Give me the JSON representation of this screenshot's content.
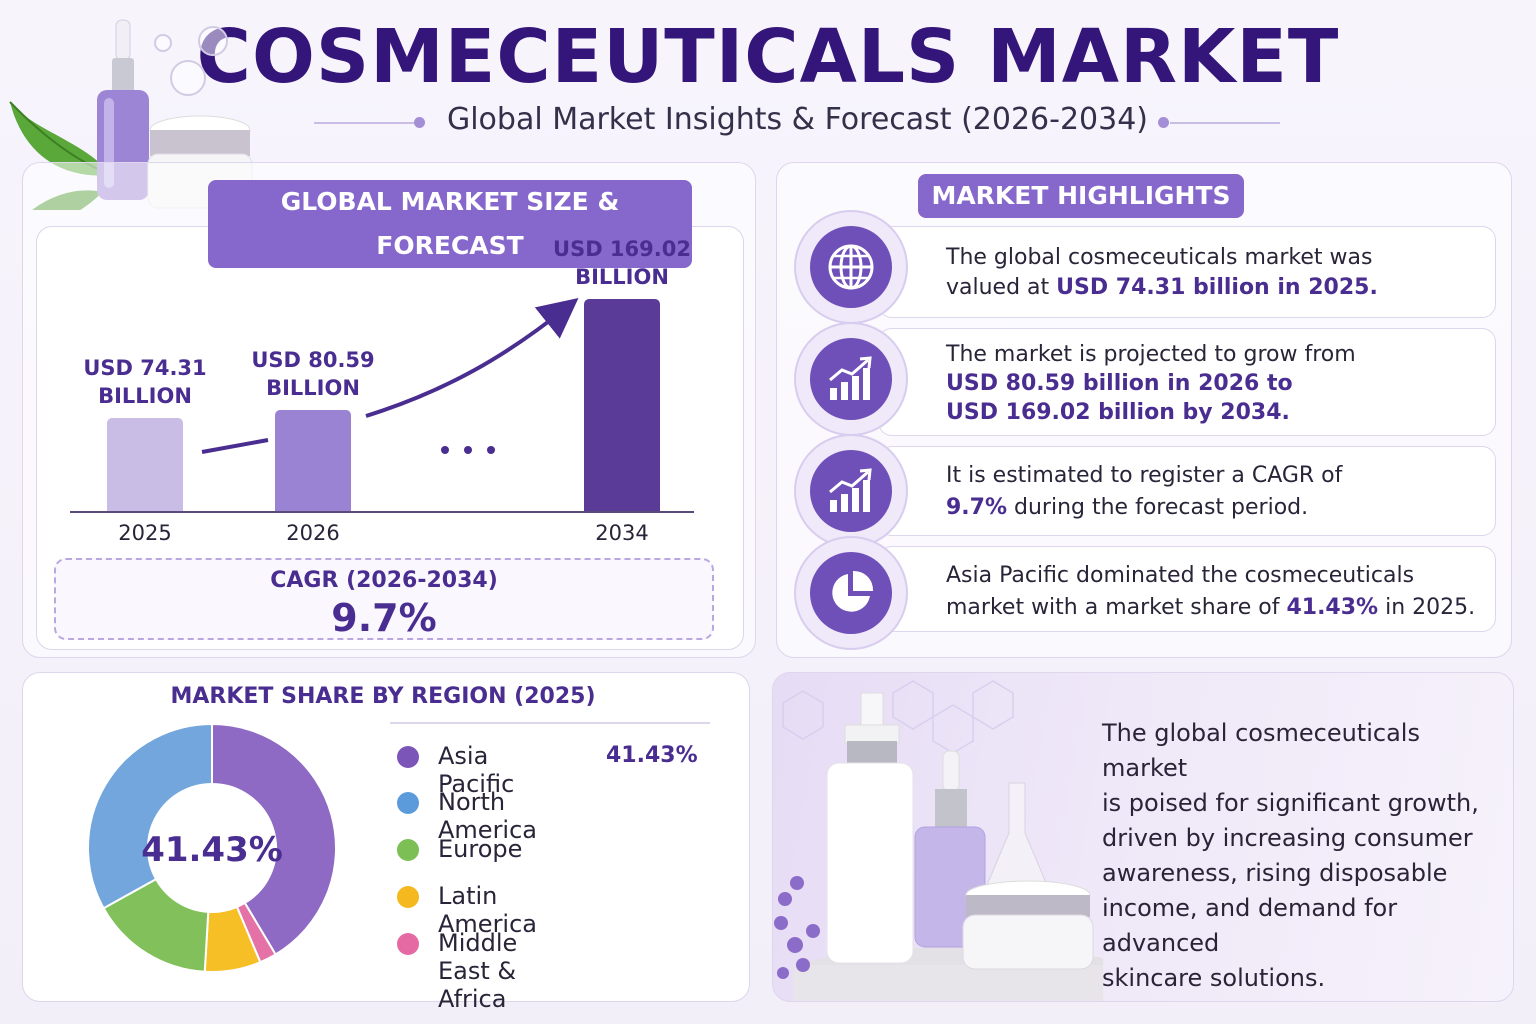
{
  "header": {
    "title": "COSMECEUTICALS MARKET",
    "subtitle": "Global Market Insights & Forecast (2026-2034)"
  },
  "colors": {
    "primary": "#34157a",
    "accent": "#8668cc",
    "bar_2025": "#c9bde6",
    "bar_2026": "#9b83d3",
    "bar_2034": "#5b3b98"
  },
  "forecast": {
    "tab_label": "GLOBAL MARKET SIZE & FORECAST",
    "cagr_label": "CAGR (2026-2034)",
    "cagr_value": "9.7%"
  },
  "highlights": {
    "tab_label": "MARKET HIGHLIGHTS",
    "items": [
      {
        "icon": "globe-icon",
        "line1": "The global cosmeceuticals market was",
        "pre2": "valued at ",
        "bold2": "USD 74.31 billion in 2025.",
        "post2": ""
      },
      {
        "icon": "growth-chart-icon",
        "line1": "The market is projected to grow from",
        "bold2": "USD 80.59 billion in 2026 to",
        "bold3": "USD 169.02 billion by 2034."
      },
      {
        "icon": "growth-chart-icon",
        "line1": "It is estimated to register a CAGR of",
        "bold2": "9.7%",
        "post2": " during the forecast period."
      },
      {
        "icon": "pie-chart-icon",
        "line1": "Asia Pacific dominated the cosmeceuticals",
        "pre2": "market with a market share of ",
        "bold2": "41.43%",
        "post2": " in 2025."
      }
    ]
  },
  "region": {
    "title": "MARKET SHARE BY REGION (2025)",
    "center_label": "41.43%"
  },
  "summary": {
    "lines": [
      "The global cosmeceuticals market",
      "is poised for significant growth,",
      "driven by increasing consumer",
      "awareness, rising disposable",
      "income, and demand for advanced",
      "skincare solutions."
    ]
  },
  "chart_data": [
    {
      "type": "bar",
      "title": "GLOBAL MARKET SIZE & FORECAST",
      "categories": [
        "2025",
        "2026",
        "2034"
      ],
      "values": [
        74.31,
        80.59,
        169.02
      ],
      "value_labels": [
        [
          "USD 74.31",
          "BILLION"
        ],
        [
          "USD 80.59",
          "BILLION"
        ],
        [
          "USD 169.02",
          "BILLION"
        ]
      ],
      "unit": "USD billion",
      "ylim": [
        0,
        169.02
      ],
      "grid": false
    },
    {
      "type": "pie",
      "title": "MARKET SHARE BY REGION (2025)",
      "donut": true,
      "legend_position": "right",
      "slices": [
        {
          "name": "Asia Pacific",
          "value": 41.43,
          "label": "41.43%",
          "color": "#8e6ac4"
        },
        {
          "name": "Middle East & Africa",
          "value": 2.2,
          "color": "#e572a7"
        },
        {
          "name": "Latin America",
          "value": 7.3,
          "color": "#f6bf26"
        },
        {
          "name": "Europe",
          "value": 16.0,
          "color": "#82c05c"
        },
        {
          "name": "North America",
          "value": 33.07,
          "color": "#73a6dc"
        }
      ],
      "legend": [
        {
          "name": "Asia Pacific",
          "value": "41.43%",
          "color": "#7b56b8"
        },
        {
          "name": "North America",
          "color": "#5b9bdb"
        },
        {
          "name": "Europe",
          "color": "#7cbf55"
        },
        {
          "name": "Latin America",
          "color": "#f5b81e"
        },
        {
          "name": "Middle East & Africa",
          "color": "#e56aa3"
        }
      ]
    }
  ]
}
